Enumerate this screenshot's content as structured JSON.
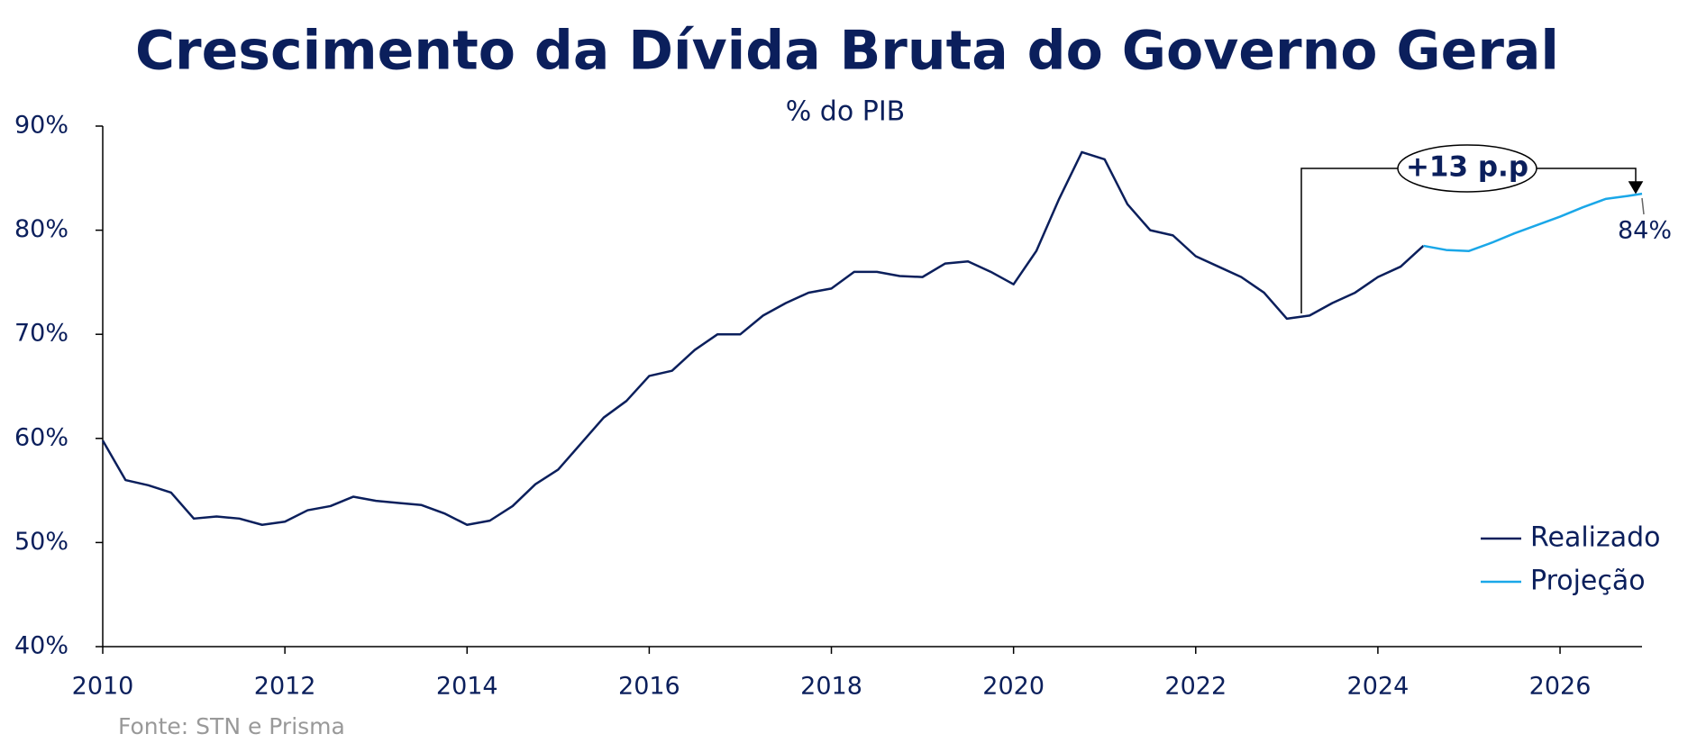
{
  "chart_data": {
    "type": "line",
    "title": "Crescimento da Dívida Bruta do Governo Geral",
    "subtitle": "% do PIB",
    "source": "Fonte: STN e Prisma",
    "series": [
      {
        "name": "Realizado",
        "color": "#0b1f5c",
        "x": [
          2010,
          2010.25,
          2010.5,
          2010.75,
          2011,
          2011.25,
          2011.5,
          2011.75,
          2012,
          2012.25,
          2012.5,
          2012.75,
          2013,
          2013.25,
          2013.5,
          2013.75,
          2014,
          2014.25,
          2014.5,
          2014.75,
          2015,
          2015.25,
          2015.5,
          2015.75,
          2016,
          2016.25,
          2016.5,
          2016.75,
          2017,
          2017.25,
          2017.5,
          2017.75,
          2018,
          2018.25,
          2018.5,
          2018.75,
          2019,
          2019.25,
          2019.5,
          2019.75,
          2020,
          2020.25,
          2020.5,
          2020.75,
          2021,
          2021.25,
          2021.5,
          2021.75,
          2022,
          2022.25,
          2022.5,
          2022.75,
          2023,
          2023.25,
          2023.5,
          2023.75,
          2024,
          2024.25,
          2024.5
        ],
        "values": [
          59.8,
          56.0,
          55.5,
          54.8,
          52.3,
          52.5,
          52.3,
          51.7,
          52.0,
          53.1,
          53.5,
          54.4,
          54.0,
          53.8,
          53.6,
          52.8,
          51.7,
          52.1,
          53.5,
          55.6,
          57.0,
          59.5,
          62.0,
          63.6,
          66.0,
          66.5,
          68.5,
          70.0,
          70.0,
          71.8,
          73.0,
          74.0,
          74.4,
          76.0,
          76.0,
          75.6,
          75.5,
          76.8,
          77.0,
          76.0,
          74.8,
          78.0,
          83.0,
          87.5,
          86.8,
          82.5,
          80.0,
          79.5,
          77.5,
          76.5,
          75.5,
          74.0,
          71.5,
          71.8,
          73.0,
          74.0,
          75.5,
          76.5,
          78.5
        ]
      },
      {
        "name": "Projeção",
        "color": "#1aa7e8",
        "x": [
          2024.5,
          2024.75,
          2025,
          2025.25,
          2025.5,
          2025.75,
          2026,
          2026.25,
          2026.5,
          2026.75,
          2026.9
        ],
        "values": [
          78.5,
          78.1,
          78.0,
          78.8,
          79.7,
          80.5,
          81.3,
          82.2,
          83.0,
          83.3,
          83.5
        ]
      }
    ],
    "annotations": [
      "+13 p.p",
      "84%"
    ],
    "xlim": [
      2010,
      2026.9
    ],
    "xticks": [
      2010,
      2012,
      2014,
      2016,
      2018,
      2020,
      2022,
      2024,
      2026
    ],
    "ylim": [
      40,
      90
    ],
    "yticks": [
      {
        "value": 40,
        "label": "40%"
      },
      {
        "value": 50,
        "label": "50%"
      },
      {
        "value": 60,
        "label": "60%"
      },
      {
        "value": 70,
        "label": "70%"
      },
      {
        "value": 80,
        "label": "80%"
      },
      {
        "value": 90,
        "label": "90%"
      }
    ],
    "grid": false,
    "legend": "lower right"
  }
}
